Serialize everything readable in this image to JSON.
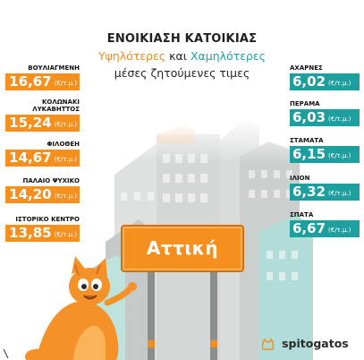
{
  "header": {
    "title": "ΕΝΟΙΚΙΑΣΗ ΚΑΤΟΙΚΙΑΣ",
    "subtitle_high": "Υψηλότερες",
    "subtitle_and": "και",
    "subtitle_low": "Χαμηλότερες",
    "subtitle_line2": "μέσες ζητούμενες τιμες"
  },
  "sign": {
    "label": "Αττική"
  },
  "brand": {
    "name": "spitogatos",
    "icon": "cat-head-icon"
  },
  "unit": "(€/τ.μ.)",
  "colors": {
    "high": "#f5901e",
    "low": "#1d9fa0"
  },
  "chart_data": [
    {
      "type": "table",
      "series_label": "Υψηλότερες",
      "areas": [
        {
          "name": "ΒΟΥΛΙΑΓΜΕΝΗ",
          "value_label": "16,67",
          "value": 16.67
        },
        {
          "name": "ΚΟΛΩΝΑΚΙ\nΛΥΚΑΒΗΤΤΟΣ",
          "value_label": "15,24",
          "value": 15.24
        },
        {
          "name": "ΦΙΛΟΘΕΗ",
          "value_label": "14,67",
          "value": 14.67
        },
        {
          "name": "ΠΑΛΑΙΟ ΨΥΧΙΚΟ",
          "value_label": "14,20",
          "value": 14.2
        },
        {
          "name": "ΙΣΤΟΡΙΚΟ ΚΕΝΤΡΟ",
          "value_label": "13,85",
          "value": 13.85
        }
      ]
    },
    {
      "type": "table",
      "series_label": "Χαμηλότερες",
      "areas": [
        {
          "name": "ΑΧΑΡΝΕΣ",
          "value_label": "6,02",
          "value": 6.02
        },
        {
          "name": "ΠΕΡΑΜΑ",
          "value_label": "6,03",
          "value": 6.03
        },
        {
          "name": "ΣΤΑΜΑΤΑ",
          "value_label": "6,15",
          "value": 6.15
        },
        {
          "name": "ΙΛΙΟΝ",
          "value_label": "6,32",
          "value": 6.32
        },
        {
          "name": "ΣΠΑΤΑ",
          "value_label": "6,67",
          "value": 6.67
        }
      ]
    }
  ]
}
